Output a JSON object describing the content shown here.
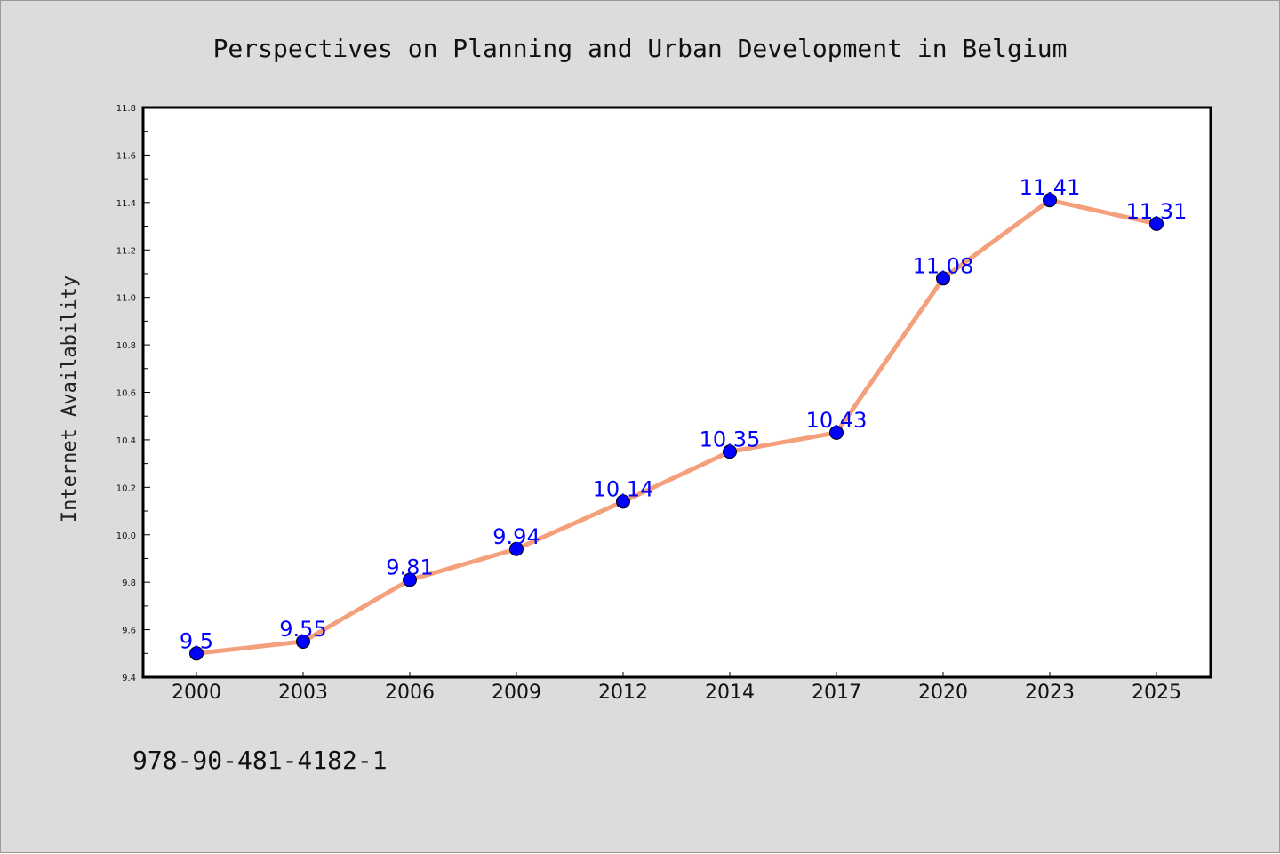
{
  "chart_data": {
    "type": "line",
    "title": "Perspectives on Planning and Urban Development in Belgium",
    "xlabel": "",
    "ylabel": "Internet Availability",
    "categories": [
      "2000",
      "2003",
      "2006",
      "2009",
      "2012",
      "2014",
      "2017",
      "2020",
      "2023",
      "2025"
    ],
    "series": [
      {
        "values": [
          9.5,
          9.55,
          9.81,
          9.94,
          10.14,
          10.35,
          10.43,
          11.08,
          11.41,
          11.31
        ]
      }
    ],
    "data_labels": [
      "9.5",
      "9.55",
      "9.81",
      "9.94",
      "10.14",
      "10.35",
      "10.43",
      "11.08",
      "11.41",
      "11.31"
    ],
    "ylim": [
      9.4,
      11.8
    ],
    "yticks": [
      "9.4",
      "9.6",
      "9.8",
      "10.0",
      "10.2",
      "10.4",
      "10.6",
      "10.8",
      "11.0",
      "11.2",
      "11.4",
      "11.6",
      "11.8"
    ],
    "grid": false,
    "legend": "none",
    "colors": {
      "line": "#f4a07c",
      "marker": "#0000ff",
      "label": "#0000ff",
      "background": "#dcdcdc",
      "plot": "#ffffff"
    }
  },
  "footer": {
    "isbn": "978-90-481-4182-1"
  }
}
